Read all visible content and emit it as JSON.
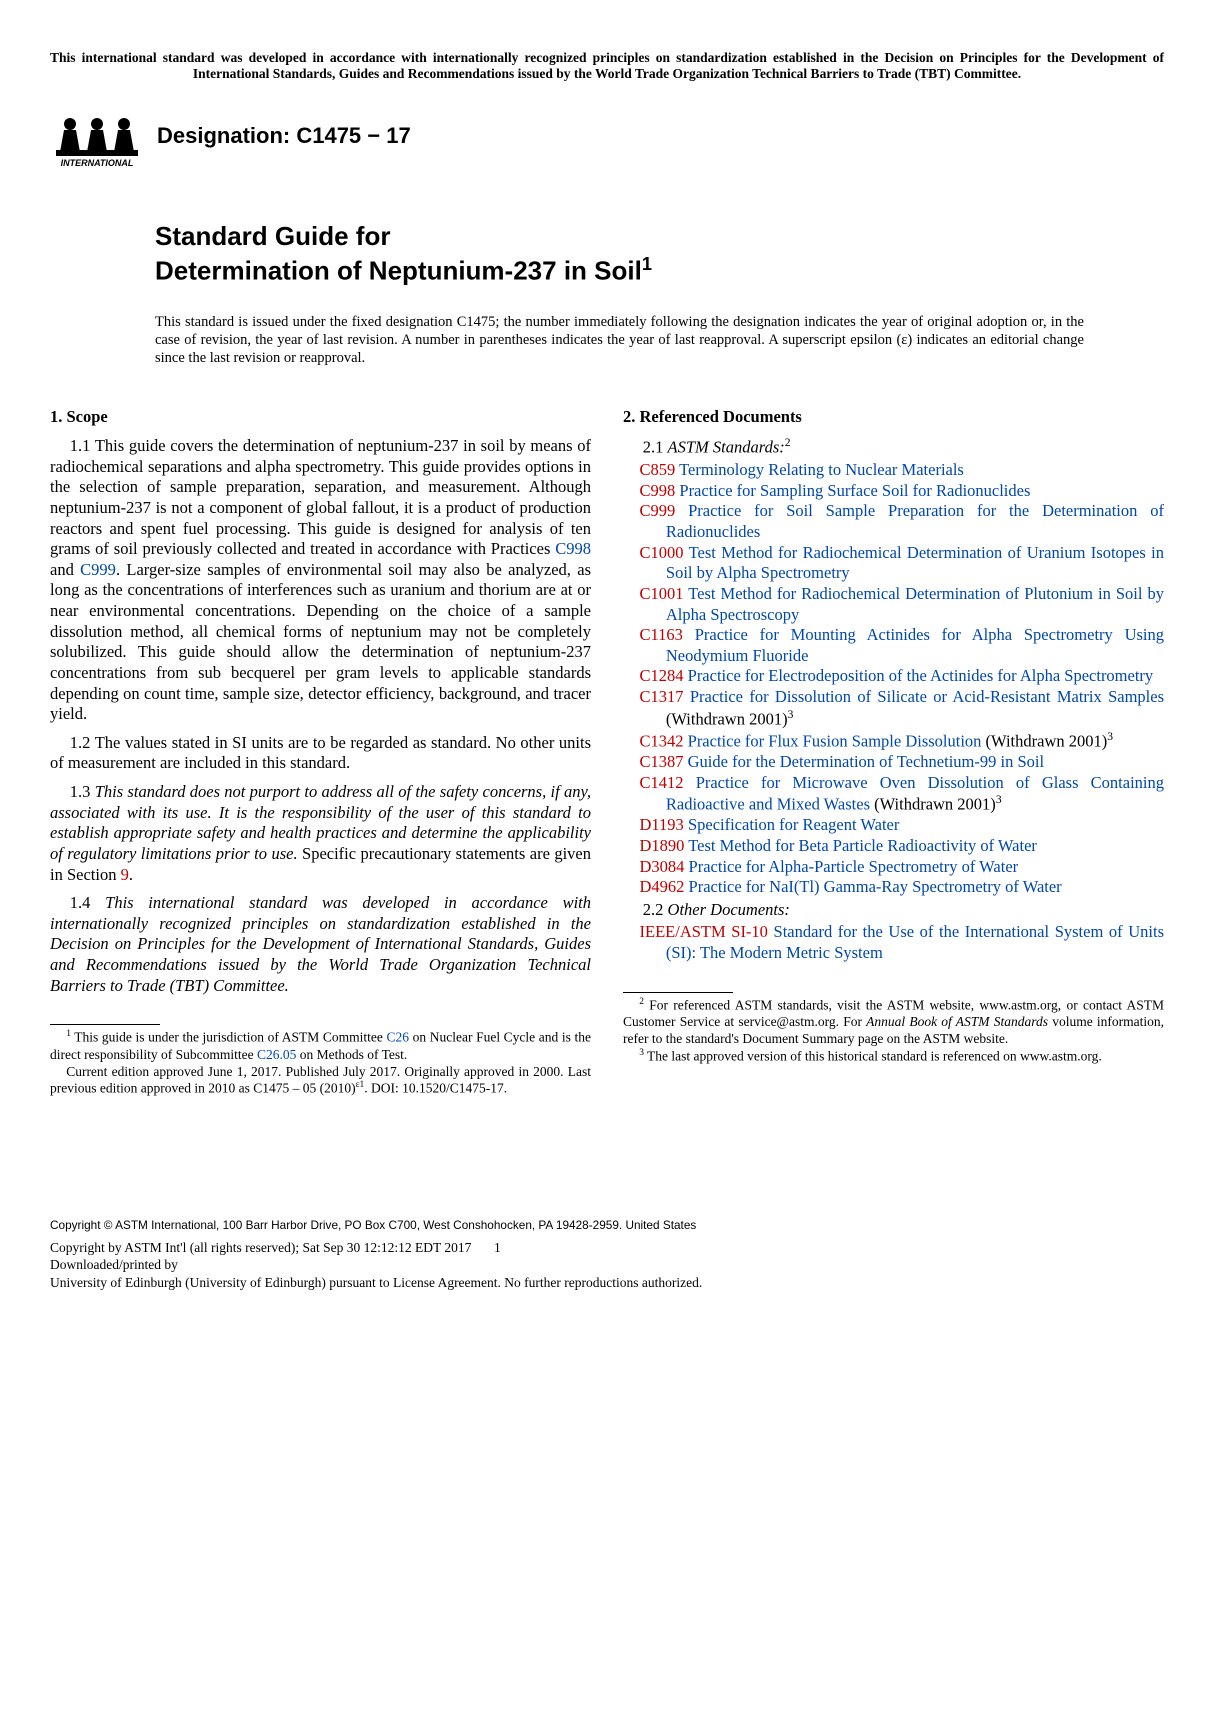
{
  "top_notice": "This international standard was developed in accordance with internationally recognized principles on standardization established in the Decision on Principles for the Development of International Standards, Guides and Recommendations issued by the World Trade Organization Technical Barriers to Trade (TBT) Committee.",
  "logo_text": "INTERNATIONAL",
  "designation_label": "Designation: C1475 − 17",
  "title_line1": "Standard Guide for",
  "title_line2": "Determination of Neptunium-237 in Soil",
  "title_sup": "1",
  "issue_note": "This standard is issued under the fixed designation C1475; the number immediately following the designation indicates the year of original adoption or, in the case of revision, the year of last revision. A number in parentheses indicates the year of last reapproval. A superscript epsilon (ε) indicates an editorial change since the last revision or reapproval.",
  "left": {
    "scope_head": "1.  Scope",
    "p11a": "1.1 This guide covers the determination of neptunium-237 in soil by means of radiochemical separations and alpha spectrometry. This guide provides options in the selection of sample preparation, separation, and measurement. Although neptunium-237 is not a component of global fallout, it is a product of production reactors and spent fuel processing. This guide is designed for analysis of ten grams of soil previously collected and treated in accordance with Practices ",
    "p11_c998": "C998",
    "p11_and": " and ",
    "p11_c999": "C999",
    "p11b": ". Larger-size samples of environmental soil may also be analyzed, as long as the concentrations of interferences such as uranium and thorium are at or near environmental concentrations. Depending on the choice of a sample dissolution method, all chemical forms of neptunium may not be completely solubilized. This guide should allow the determination of neptunium-237 concentrations from sub becquerel per gram levels to applicable standards depending on count time, sample size, detector efficiency, background, and tracer yield.",
    "p12": "1.2 The values stated in SI units are to be regarded as standard. No other units of measurement are included in this standard.",
    "p13a": "1.3 ",
    "p13b": "This standard does not purport to address all of the safety concerns, if any, associated with its use. It is the responsibility of the user of this standard to establish appropriate safety and health practices and determine the applicability of regulatory limitations prior to use.",
    "p13c": " Specific precautionary statements are given in Section ",
    "p13_sec9": "9",
    "p13d": ".",
    "p14a": "1.4 ",
    "p14b": "This international standard was developed in accordance with internationally recognized principles on standardization established in the Decision on Principles for the Development of International Standards, Guides and Recommendations issued by the World Trade Organization Technical Barriers to Trade (TBT) Committee.",
    "fn1a": " This guide is under the jurisdiction of ASTM Committee ",
    "fn1_c26": "C26",
    "fn1b": " on Nuclear Fuel Cycle and is the direct responsibility of Subcommittee ",
    "fn1_c2605": "C26.05",
    "fn1c": " on Methods of Test.",
    "fn1d": "Current edition approved June 1, 2017. Published July 2017. Originally approved in 2000. Last previous edition approved in 2010 as C1475 – 05 (2010)",
    "fn1_eps": "ε1",
    "fn1e": ". DOI: 10.1520/C1475-17."
  },
  "right": {
    "refdoc_head": "2.  Referenced Documents",
    "sub21": "2.1 ",
    "sub21i": "ASTM Standards:",
    "sub21sup": "2",
    "refs": [
      {
        "code": "C859",
        "text": " Terminology Relating to Nuclear Materials",
        "tail": ""
      },
      {
        "code": "C998",
        "text": " Practice for Sampling Surface Soil for Radionuclides",
        "tail": ""
      },
      {
        "code": "C999",
        "text": " Practice for Soil Sample Preparation for the Determination of Radionuclides",
        "tail": ""
      },
      {
        "code": "C1000",
        "text": " Test Method for Radiochemical Determination of Uranium Isotopes in Soil by Alpha Spectrometry",
        "tail": ""
      },
      {
        "code": "C1001",
        "text": " Test Method for Radiochemical Determination of Plutonium in Soil by Alpha Spectroscopy",
        "tail": ""
      },
      {
        "code": "C1163",
        "text": " Practice for Mounting Actinides for Alpha Spectrometry Using Neodymium Fluoride",
        "tail": ""
      },
      {
        "code": "C1284",
        "text": " Practice for Electrodeposition of the Actinides for Alpha Spectrometry",
        "tail": ""
      },
      {
        "code": "C1317",
        "text": " Practice for Dissolution of Silicate or Acid-Resistant Matrix Samples",
        "tail": " (Withdrawn 2001)",
        "sup": "3"
      },
      {
        "code": "C1342",
        "text": " Practice for Flux Fusion Sample Dissolution",
        "tail": " (Withdrawn 2001)",
        "sup": "3"
      },
      {
        "code": "C1387",
        "text": " Guide for the Determination of Technetium-99 in Soil",
        "tail": ""
      },
      {
        "code": "C1412",
        "text": " Practice for Microwave Oven Dissolution of Glass Containing Radioactive and Mixed Wastes",
        "tail": " (Withdrawn 2001)",
        "sup": "3"
      },
      {
        "code": "D1193",
        "text": " Specification for Reagent Water",
        "tail": ""
      },
      {
        "code": "D1890",
        "text": " Test Method for Beta Particle Radioactivity of Water",
        "tail": ""
      },
      {
        "code": "D3084",
        "text": " Practice for Alpha-Particle Spectrometry of Water",
        "tail": ""
      },
      {
        "code": "D4962",
        "text": " Practice for NaI(Tl) Gamma-Ray Spectrometry of Water",
        "tail": ""
      }
    ],
    "sub22": "2.2 ",
    "sub22i": "Other Documents:",
    "ieee_code": "IEEE/ASTM SI-10",
    "ieee_text": " Standard for the Use of the International System of Units (SI): The Modern Metric System",
    "fn2a": " For referenced ASTM standards, visit the ASTM website, www.astm.org, or contact ASTM Customer Service at service@astm.org. For ",
    "fn2b": "Annual Book of ASTM Standards",
    "fn2c": " volume information, refer to the standard's Document Summary page on the ASTM website.",
    "fn3": " The last approved version of this historical standard is referenced on www.astm.org."
  },
  "copyright": "Copyright © ASTM International, 100 Barr Harbor Drive, PO Box C700, West Conshohocken, PA 19428-2959. United States",
  "bottom1a": "Copyright by ASTM Int'l (all rights reserved); Sat Sep 30 12:12:12 EDT 2017",
  "pagenum": "1",
  "bottom2": "Downloaded/printed by",
  "bottom3": "University of Edinburgh (University of Edinburgh) pursuant to License Agreement. No further reproductions authorized."
}
